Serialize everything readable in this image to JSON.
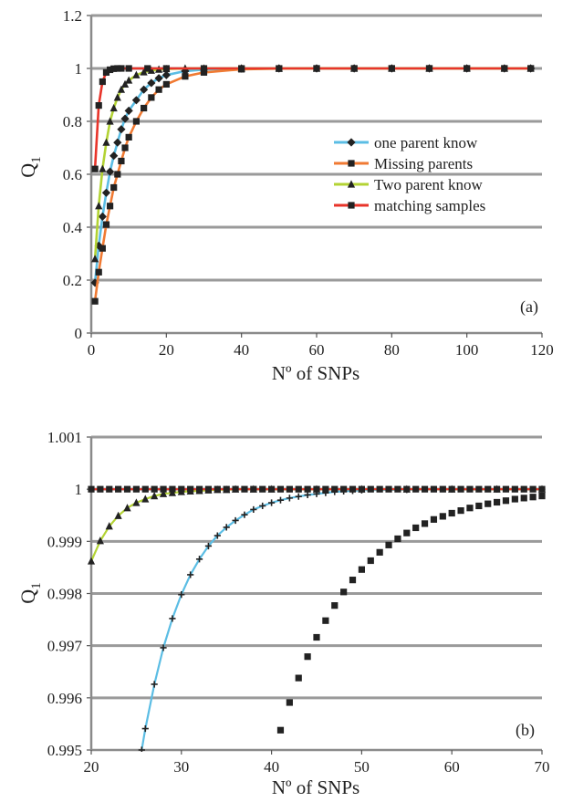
{
  "chart_data": [
    {
      "type": "line",
      "panel_label": "(a)",
      "xlabel": "Nº of SNPs",
      "ylabel": "Q",
      "ylabel_sub": "1",
      "xlim": [
        0,
        120
      ],
      "ylim": [
        0,
        1.2
      ],
      "xticks": [
        "0",
        "20",
        "40",
        "60",
        "80",
        "100",
        "120"
      ],
      "yticks": [
        "0",
        "0.2",
        "0.4",
        "0.6",
        "0.8",
        "1",
        "1.2"
      ],
      "grid": "horizontal",
      "legend_position": "center-right",
      "series": [
        {
          "name": "one parent know",
          "color": "#5bbde4",
          "marker": "diamond",
          "marker_color": "#222222",
          "x": [
            1,
            2,
            3,
            4,
            5,
            6,
            7,
            8,
            9,
            10,
            12,
            14,
            16,
            18,
            20,
            25,
            30,
            40,
            50,
            60,
            70,
            80,
            90,
            100,
            110,
            117
          ],
          "y": [
            0.19,
            0.33,
            0.44,
            0.53,
            0.61,
            0.67,
            0.72,
            0.77,
            0.81,
            0.84,
            0.88,
            0.92,
            0.945,
            0.963,
            0.975,
            0.99,
            0.996,
            0.9995,
            1,
            1,
            1,
            1,
            1,
            1,
            1,
            1
          ]
        },
        {
          "name": "Missing parents",
          "color": "#f07a33",
          "marker": "square",
          "marker_color": "#222222",
          "x": [
            1,
            2,
            3,
            4,
            5,
            6,
            7,
            8,
            9,
            10,
            12,
            14,
            16,
            18,
            20,
            25,
            30,
            40,
            50,
            60,
            70,
            80,
            90,
            100,
            110,
            117
          ],
          "y": [
            0.12,
            0.23,
            0.32,
            0.41,
            0.48,
            0.55,
            0.6,
            0.65,
            0.7,
            0.74,
            0.8,
            0.85,
            0.89,
            0.92,
            0.94,
            0.97,
            0.985,
            0.997,
            0.9993,
            1,
            1,
            1,
            1,
            1,
            1,
            1
          ]
        },
        {
          "name": "Two parent know",
          "color": "#b3d334",
          "marker": "triangle",
          "marker_color": "#222222",
          "x": [
            1,
            2,
            3,
            4,
            5,
            6,
            7,
            8,
            9,
            10,
            12,
            14,
            16,
            18,
            20,
            25,
            30,
            40,
            50,
            60,
            70,
            80,
            90,
            100,
            110,
            117
          ],
          "y": [
            0.28,
            0.48,
            0.62,
            0.72,
            0.8,
            0.85,
            0.89,
            0.92,
            0.94,
            0.955,
            0.975,
            0.986,
            0.992,
            0.996,
            0.998,
            1,
            1,
            1,
            1,
            1,
            1,
            1,
            1,
            1,
            1,
            1
          ]
        },
        {
          "name": "matching samples",
          "color": "#e8342a",
          "marker": "square",
          "marker_color": "#222222",
          "x": [
            1,
            2,
            3,
            4,
            5,
            6,
            7,
            8,
            10,
            15,
            20,
            30,
            40,
            50,
            60,
            70,
            80,
            90,
            100,
            110,
            117
          ],
          "y": [
            0.62,
            0.86,
            0.95,
            0.985,
            0.995,
            0.999,
            1,
            1,
            1,
            1,
            1,
            1,
            1,
            1,
            1,
            1,
            1,
            1,
            1,
            1,
            1
          ]
        }
      ]
    },
    {
      "type": "line",
      "panel_label": "(b)",
      "xlabel": "Nº of SNPs",
      "ylabel": "Q",
      "ylabel_sub": "1",
      "xlim": [
        20,
        70
      ],
      "ylim": [
        0.995,
        1.001
      ],
      "xticks": [
        "20",
        "30",
        "40",
        "50",
        "60",
        "70"
      ],
      "yticks": [
        "0.995",
        "0.996",
        "0.997",
        "0.998",
        "0.999",
        "1",
        "1.001"
      ],
      "grid": "horizontal",
      "series": [
        {
          "name": "one parent know",
          "color": "#5bbde4",
          "marker": "plus",
          "marker_color": "#222222",
          "x": [
            25.6,
            26,
            27,
            28,
            29,
            30,
            31,
            32,
            33,
            34,
            35,
            36,
            37,
            38,
            39,
            40,
            41,
            42,
            43,
            44,
            45,
            46,
            47,
            48,
            49,
            50,
            55,
            60,
            65,
            70
          ],
          "y": [
            0.995,
            0.99541,
            0.99626,
            0.99696,
            0.99752,
            0.99798,
            0.99836,
            0.99866,
            0.99891,
            0.99911,
            0.99927,
            0.9994,
            0.99951,
            0.99961,
            0.99968,
            0.99974,
            0.99979,
            0.99983,
            0.99986,
            0.99989,
            0.99991,
            0.99993,
            0.99995,
            0.99996,
            0.99997,
            0.99998,
            0.99999,
            1,
            1,
            1
          ]
        },
        {
          "name": "Missing parents",
          "color": "#f07a33",
          "marker": "square",
          "marker_color": "#222222",
          "x": [
            41,
            42,
            43,
            44,
            45,
            46,
            47,
            48,
            49,
            50,
            51,
            52,
            53,
            54,
            55,
            56,
            57,
            58,
            59,
            60,
            61,
            62,
            63,
            64,
            65,
            66,
            67,
            68,
            69,
            70
          ],
          "y": [
            0.99538,
            0.99591,
            0.99638,
            0.99679,
            0.99716,
            0.99748,
            0.99777,
            0.99803,
            0.99826,
            0.99846,
            0.99863,
            0.99879,
            0.99893,
            0.99905,
            0.99916,
            0.99926,
            0.99934,
            0.99942,
            0.99948,
            0.99954,
            0.99959,
            0.99964,
            0.99968,
            0.99972,
            0.99975,
            0.99978,
            0.99981,
            0.99983,
            0.99985,
            0.99987
          ]
        },
        {
          "name": "Two parent know",
          "color": "#b3d334",
          "marker": "triangle",
          "marker_color": "#222222",
          "x": [
            20,
            21,
            22,
            23,
            24,
            25,
            26,
            27,
            28,
            29,
            30,
            31,
            32,
            33,
            34,
            35,
            36,
            38,
            40,
            45,
            50,
            55,
            60,
            65,
            70
          ],
          "y": [
            0.99862,
            0.99901,
            0.99929,
            0.99949,
            0.99964,
            0.99974,
            0.99981,
            0.99987,
            0.99991,
            0.99993,
            0.99995,
            0.99996,
            0.99997,
            0.99998,
            0.99999,
            0.99999,
            1,
            1,
            1,
            1,
            1,
            1,
            1,
            1,
            1
          ]
        },
        {
          "name": "matching samples",
          "color": "#e8342a",
          "marker": "square",
          "marker_color": "#222222",
          "x": [
            20,
            21,
            22,
            23,
            24,
            25,
            26,
            27,
            28,
            29,
            30,
            31,
            32,
            33,
            34,
            35,
            36,
            37,
            38,
            39,
            40,
            41,
            42,
            43,
            44,
            45,
            46,
            47,
            48,
            49,
            50,
            51,
            52,
            53,
            54,
            55,
            56,
            57,
            58,
            59,
            60,
            61,
            62,
            63,
            64,
            65,
            66,
            67,
            68,
            69,
            70
          ],
          "y": [
            1,
            1,
            1,
            1,
            1,
            1,
            1,
            1,
            1,
            1,
            1,
            1,
            1,
            1,
            1,
            1,
            1,
            1,
            1,
            1,
            1,
            1,
            1,
            1,
            1,
            1,
            1,
            1,
            1,
            1,
            1,
            1,
            1,
            1,
            1,
            1,
            1,
            1,
            1,
            1,
            1,
            1,
            1,
            1,
            1,
            1,
            1,
            1,
            1,
            1,
            1
          ]
        }
      ]
    }
  ]
}
